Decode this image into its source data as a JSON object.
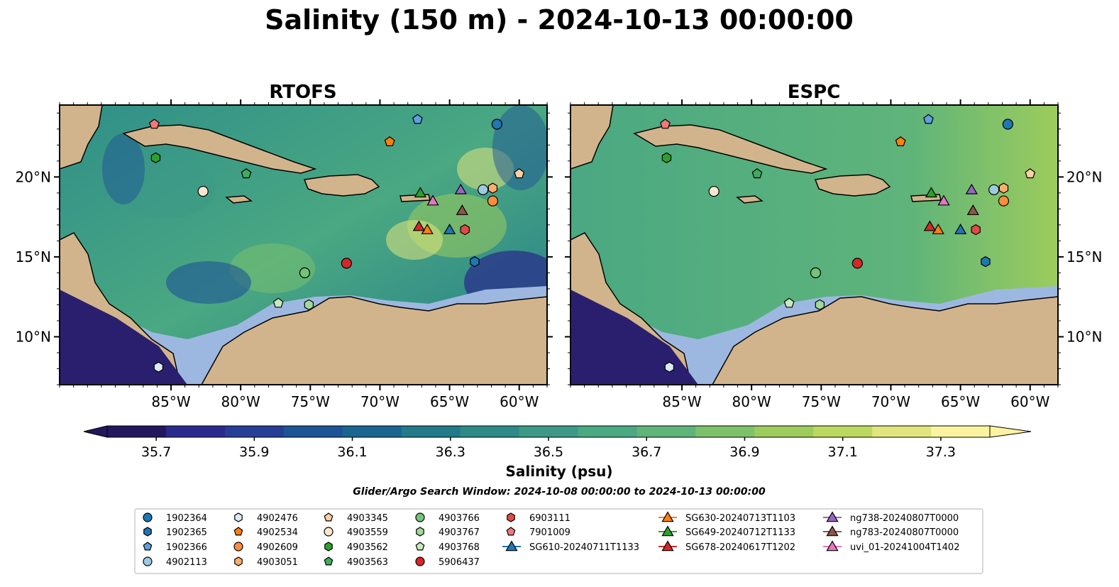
{
  "figure": {
    "title": "Salinity (150 m) - 2024-10-13 00:00:00",
    "search_window": "Glider/Argo Search Window: 2024-10-08 00:00:00 to 2024-10-13 00:00:00"
  },
  "panels": [
    {
      "title": "RTOFS"
    },
    {
      "title": "ESPC"
    }
  ],
  "map": {
    "lon_range": [
      -93,
      -58
    ],
    "lat_range": [
      7,
      24.5
    ],
    "lon_ticks": [
      -85,
      -80,
      -75,
      -70,
      -65,
      -60
    ],
    "lon_tick_labels": [
      "85°W",
      "80°W",
      "75°W",
      "70°W",
      "65°W",
      "60°W"
    ],
    "lat_ticks": [
      10,
      15,
      20
    ],
    "lat_tick_labels": [
      "10°N",
      "15°N",
      "20°N"
    ],
    "land_color": "#d2b48c",
    "shelf_color": "#9db8e0",
    "deep_fill_rtofs": "#3a9a8a",
    "deep_fill_espc": "#4fae7a"
  },
  "colorbar": {
    "label": "Salinity (psu)",
    "min": 35.6,
    "max": 37.4,
    "ticks": [
      35.7,
      35.9,
      36.1,
      36.3,
      36.5,
      36.7,
      36.9,
      37.1,
      37.3
    ],
    "tick_labels": [
      "35.7",
      "35.9",
      "36.1",
      "36.3",
      "36.5",
      "36.7",
      "36.9",
      "37.1",
      "37.3"
    ],
    "colors": [
      "#23185e",
      "#2a2a8c",
      "#273e96",
      "#1e5396",
      "#1a6490",
      "#227a8a",
      "#2d8a87",
      "#3d9986",
      "#4aa882",
      "#5fb47a",
      "#7dc26b",
      "#9dcc5c",
      "#bcd860",
      "#e1e57e",
      "#fbf3a0"
    ]
  },
  "markers": [
    {
      "id": "1902364",
      "shape": "circle",
      "color": "#1f77b4",
      "lon": -61.6,
      "lat": 23.3
    },
    {
      "id": "1902365",
      "shape": "hexagon",
      "color": "#1f77b4",
      "lon": -63.2,
      "lat": 14.7
    },
    {
      "id": "1902366",
      "shape": "pentagon",
      "color": "#5da0e0",
      "lon": -67.3,
      "lat": 23.6
    },
    {
      "id": "4902113",
      "shape": "circle",
      "color": "#9ecae1",
      "lon": -62.6,
      "lat": 19.2
    },
    {
      "id": "4902476",
      "shape": "hexagon",
      "color": "#dbeaf7",
      "lon": -85.9,
      "lat": 8.1
    },
    {
      "id": "4902534",
      "shape": "pentagon",
      "color": "#ff7f0e",
      "lon": -69.3,
      "lat": 22.2
    },
    {
      "id": "4902609",
      "shape": "circle",
      "color": "#fd8d3c",
      "lon": -61.9,
      "lat": 18.5
    },
    {
      "id": "4903051",
      "shape": "hexagon",
      "color": "#fdae6b",
      "lon": -61.9,
      "lat": 19.3
    },
    {
      "id": "4903345",
      "shape": "pentagon",
      "color": "#fdd0a2",
      "lon": -60.0,
      "lat": 20.2
    },
    {
      "id": "4903559",
      "shape": "circle",
      "color": "#fee6ce",
      "lon": -82.7,
      "lat": 19.1
    },
    {
      "id": "4903562",
      "shape": "hexagon",
      "color": "#2ca02c",
      "lon": -86.1,
      "lat": 21.2
    },
    {
      "id": "4903563",
      "shape": "pentagon",
      "color": "#41ab5d",
      "lon": -79.6,
      "lat": 20.2
    },
    {
      "id": "4903766",
      "shape": "circle",
      "color": "#74c476",
      "lon": -75.4,
      "lat": 14.0
    },
    {
      "id": "4903767",
      "shape": "hexagon",
      "color": "#a1d99b",
      "lon": -75.1,
      "lat": 12.0
    },
    {
      "id": "4903768",
      "shape": "pentagon",
      "color": "#c7e9c0",
      "lon": -77.3,
      "lat": 12.1
    },
    {
      "id": "5906437",
      "shape": "circle",
      "color": "#d62728",
      "lon": -72.4,
      "lat": 14.6
    },
    {
      "id": "6903111",
      "shape": "hexagon",
      "color": "#e24a4a",
      "lon": -63.9,
      "lat": 16.7
    },
    {
      "id": "7901009",
      "shape": "pentagon",
      "color": "#f07979",
      "lon": -86.2,
      "lat": 23.3
    },
    {
      "id": "SG610-20240711T1133",
      "shape": "triangle",
      "color": "#1f77b4",
      "lon": -65.0,
      "lat": 16.7
    },
    {
      "id": "SG630-20240713T1103",
      "shape": "triangle",
      "color": "#ff7f0e",
      "lon": -66.6,
      "lat": 16.7
    },
    {
      "id": "SG649-20240712T1133",
      "shape": "triangle",
      "color": "#2ca02c",
      "lon": -67.1,
      "lat": 19.0
    },
    {
      "id": "SG678-20240617T1202",
      "shape": "triangle",
      "color": "#d62728",
      "lon": -67.2,
      "lat": 16.9
    },
    {
      "id": "ng738-20240807T0000",
      "shape": "triangle",
      "color": "#9467bd",
      "lon": -64.2,
      "lat": 19.2
    },
    {
      "id": "ng783-20240807T0000",
      "shape": "triangle",
      "color": "#8c564b",
      "lon": -64.1,
      "lat": 17.9
    },
    {
      "id": "uvi_01-20241004T1402",
      "shape": "triangle",
      "color": "#e377c2",
      "lon": -66.2,
      "lat": 18.5
    }
  ],
  "legend": {
    "columns": [
      [
        "1902364",
        "1902365",
        "1902366",
        "4902113"
      ],
      [
        "4902476",
        "4902534",
        "4902609",
        "4903051"
      ],
      [
        "4903345",
        "4903559",
        "4903562",
        "4903563"
      ],
      [
        "4903766",
        "4903767",
        "4903768",
        "5906437"
      ],
      [
        "6903111",
        "7901009",
        "SG610-20240711T1133"
      ],
      [
        "SG630-20240713T1103",
        "SG649-20240712T1133",
        "SG678-20240617T1202"
      ],
      [
        "ng738-20240807T0000",
        "ng783-20240807T0000",
        "uvi_01-20241004T1402"
      ]
    ]
  }
}
